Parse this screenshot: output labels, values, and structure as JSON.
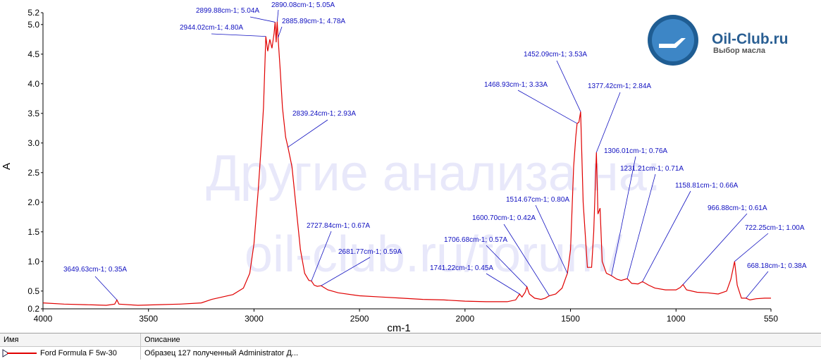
{
  "chart_data": {
    "type": "line",
    "x_label": "cm-1",
    "y_label": "A",
    "xlim": [
      4000,
      550
    ],
    "ylim": [
      0.2,
      5.2
    ],
    "xticks": [
      4000,
      3500,
      3000,
      2500,
      2000,
      1500,
      1000,
      550
    ],
    "yticks": [
      0.2,
      0.5,
      {
        "value": 1,
        "label": "1.0"
      },
      1.5,
      {
        "value": 2,
        "label": "2.0"
      },
      2.5,
      {
        "value": 3,
        "label": "3.0"
      },
      3.5,
      {
        "value": 4,
        "label": "4.0"
      },
      4.5,
      {
        "value": 5,
        "label": "5.0"
      },
      5.2
    ],
    "x": [
      4000,
      3900,
      3800,
      3700,
      3660,
      3649.63,
      3640,
      3550,
      3450,
      3350,
      3250,
      3200,
      3150,
      3100,
      3050,
      3020,
      3000,
      2980,
      2965,
      2955,
      2944.02,
      2935,
      2925,
      2915,
      2905,
      2899.88,
      2895,
      2890.08,
      2885.89,
      2875,
      2865,
      2850,
      2839.24,
      2820,
      2800,
      2780,
      2760,
      2740,
      2727.84,
      2715,
      2700,
      2681.77,
      2650,
      2600,
      2500,
      2400,
      2300,
      2200,
      2100,
      2000,
      1900,
      1800,
      1760,
      1741.22,
      1730,
      1715,
      1706.68,
      1695,
      1670,
      1640,
      1620,
      1600.7,
      1570,
      1540,
      1520,
      1514.67,
      1500,
      1485,
      1475,
      1468.93,
      1460,
      1452.09,
      1440,
      1420,
      1400,
      1390,
      1377.42,
      1370,
      1360,
      1350,
      1330,
      1306.01,
      1280,
      1260,
      1231.21,
      1210,
      1180,
      1158.81,
      1130,
      1100,
      1050,
      1000,
      980,
      966.88,
      950,
      900,
      850,
      800,
      760,
      740,
      722.25,
      710,
      690,
      668.18,
      650,
      620,
      580,
      550
    ],
    "series": [
      {
        "name": "Ford Formula F 5w-30",
        "color": "#e00000",
        "values": [
          0.3,
          0.28,
          0.27,
          0.26,
          0.28,
          0.35,
          0.28,
          0.26,
          0.27,
          0.28,
          0.3,
          0.36,
          0.4,
          0.44,
          0.55,
          0.8,
          1.3,
          2.2,
          3.0,
          3.6,
          4.8,
          4.55,
          4.75,
          4.6,
          4.85,
          5.04,
          4.7,
          5.05,
          4.78,
          4.2,
          3.6,
          3.1,
          2.93,
          2.6,
          1.9,
          1.2,
          0.8,
          0.68,
          0.67,
          0.6,
          0.58,
          0.59,
          0.52,
          0.47,
          0.42,
          0.4,
          0.38,
          0.36,
          0.35,
          0.33,
          0.32,
          0.32,
          0.35,
          0.45,
          0.4,
          0.48,
          0.57,
          0.45,
          0.38,
          0.36,
          0.38,
          0.42,
          0.45,
          0.55,
          0.75,
          0.8,
          1.2,
          2.6,
          3.1,
          3.33,
          3.35,
          3.53,
          2.0,
          0.9,
          0.9,
          1.5,
          2.84,
          1.8,
          1.9,
          1.0,
          0.8,
          0.76,
          0.7,
          0.68,
          0.71,
          0.63,
          0.62,
          0.66,
          0.6,
          0.55,
          0.52,
          0.52,
          0.56,
          0.61,
          0.52,
          0.48,
          0.47,
          0.45,
          0.5,
          0.7,
          1.0,
          0.6,
          0.38,
          0.38,
          0.35,
          0.37,
          0.38,
          0.38
        ]
      }
    ],
    "annotations": [
      {
        "text": "3649.63cm-1; 0.35A",
        "x": 3649.63,
        "y": 0.35
      },
      {
        "text": "2944.02cm-1; 4.80A",
        "x": 2944.02,
        "y": 4.8
      },
      {
        "text": "2899.88cm-1; 5.04A",
        "x": 2899.88,
        "y": 5.04
      },
      {
        "text": "2890.08cm-1; 5.05A",
        "x": 2890.08,
        "y": 5.05
      },
      {
        "text": "2885.89cm-1; 4.78A",
        "x": 2885.89,
        "y": 4.78
      },
      {
        "text": "2839.24cm-1; 2.93A",
        "x": 2839.24,
        "y": 2.93
      },
      {
        "text": "2727.84cm-1; 0.67A",
        "x": 2727.84,
        "y": 0.67
      },
      {
        "text": "2681.77cm-1; 0.59A",
        "x": 2681.77,
        "y": 0.59
      },
      {
        "text": "1741.22cm-1; 0.45A",
        "x": 1741.22,
        "y": 0.45
      },
      {
        "text": "1706.68cm-1; 0.57A",
        "x": 1706.68,
        "y": 0.57
      },
      {
        "text": "1600.70cm-1; 0.42A",
        "x": 1600.7,
        "y": 0.42
      },
      {
        "text": "1514.67cm-1; 0.80A",
        "x": 1514.67,
        "y": 0.8
      },
      {
        "text": "1468.93cm-1; 3.33A",
        "x": 1468.93,
        "y": 3.33
      },
      {
        "text": "1452.09cm-1; 3.53A",
        "x": 1452.09,
        "y": 3.53
      },
      {
        "text": "1377.42cm-1; 2.84A",
        "x": 1377.42,
        "y": 2.84
      },
      {
        "text": "1306.01cm-1; 0.76A",
        "x": 1306.01,
        "y": 0.76
      },
      {
        "text": "1231.21cm-1; 0.71A",
        "x": 1231.21,
        "y": 0.71
      },
      {
        "text": "1158.81cm-1; 0.66A",
        "x": 1158.81,
        "y": 0.66
      },
      {
        "text": "966.88cm-1; 0.61A",
        "x": 966.88,
        "y": 0.61
      },
      {
        "text": "722.25cm-1; 1.00A",
        "x": 722.25,
        "y": 1
      },
      {
        "text": "668.18cm-1; 0.38A",
        "x": 668.18,
        "y": 0.38
      }
    ]
  },
  "watermark": [
    "Другие анализа на:",
    "oil-club.ru/forum/"
  ],
  "logo": {
    "title": "Oil-Club.ru",
    "subtitle": "Выбор масла"
  },
  "table": {
    "headers": [
      "Имя",
      "Описание"
    ],
    "rows": [
      [
        "Ford Formula F 5w-30",
        "Образец 127 полученный Administrator Д..."
      ]
    ]
  }
}
